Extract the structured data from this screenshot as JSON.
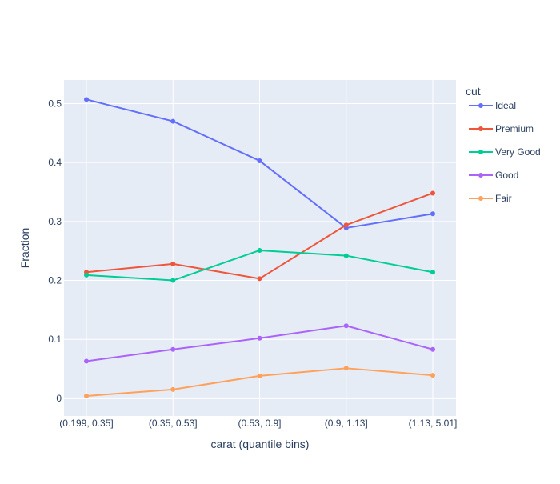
{
  "chart_data": {
    "type": "line",
    "title": "",
    "xlabel": "carat (quantile bins)",
    "ylabel": "Fraction",
    "categories": [
      "(0.199, 0.35]",
      "(0.35, 0.53]",
      "(0.53, 0.9]",
      "(0.9, 1.13]",
      "(1.13, 5.01]"
    ],
    "ylim": [
      -0.03,
      0.54
    ],
    "yticks": [
      0,
      0.1,
      0.2,
      0.3,
      0.4,
      0.5
    ],
    "ytick_labels": [
      "0",
      "0.1",
      "0.2",
      "0.3",
      "0.4",
      "0.5"
    ],
    "grid": true,
    "legend": {
      "title": "cut",
      "placement": "right"
    },
    "series": [
      {
        "name": "Ideal",
        "color": "#636efa",
        "values": [
          0.507,
          0.47,
          0.403,
          0.289,
          0.313
        ]
      },
      {
        "name": "Premium",
        "color": "#EF553B",
        "values": [
          0.214,
          0.228,
          0.203,
          0.294,
          0.348
        ]
      },
      {
        "name": "Very Good",
        "color": "#00cc96",
        "values": [
          0.209,
          0.2,
          0.251,
          0.242,
          0.214
        ]
      },
      {
        "name": "Good",
        "color": "#ab63fa",
        "values": [
          0.063,
          0.083,
          0.102,
          0.123,
          0.083
        ]
      },
      {
        "name": "Fair",
        "color": "#FFA15A",
        "values": [
          0.004,
          0.015,
          0.038,
          0.051,
          0.039
        ]
      }
    ]
  }
}
